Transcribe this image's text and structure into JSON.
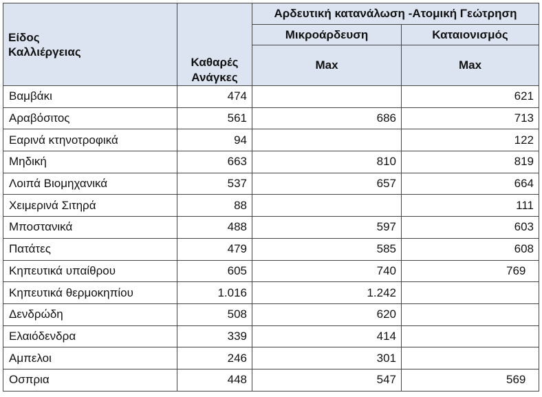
{
  "header": {
    "crop_type": "Είδος Καλλιέργειας",
    "crop_type_lines": [
      "Είδος",
      "Καλλιέργειας"
    ],
    "net_needs_lines": [
      "Καθαρές",
      "Ανάγκες"
    ],
    "group_title": "Αρδευτική κατανάλωση -Ατομική Γεώτρηση",
    "micro_irrigation": "Μικροάρδευση",
    "sprinkler": "Καταιονισμός",
    "max_micro": "Max",
    "max_sprinkler": "Max"
  },
  "rows": [
    {
      "crop": "Βαμβάκι",
      "net": "474",
      "micro": "",
      "sprinkler": "621"
    },
    {
      "crop": "Αραβόσιτος",
      "net": "561",
      "micro": "686",
      "sprinkler": "713"
    },
    {
      "crop": "Εαρινά κτηνοτροφικά",
      "net": "94",
      "micro": "",
      "sprinkler": "122"
    },
    {
      "crop": "Μηδική",
      "net": "663",
      "micro": "810",
      "sprinkler": "819"
    },
    {
      "crop": "Λοιπά Βιομηχανικά",
      "net": "537",
      "micro": "657",
      "sprinkler": "664"
    },
    {
      "crop": "Χειμερινά Σιτηρά",
      "net": "88",
      "micro": "",
      "sprinkler": "111"
    },
    {
      "crop": "Μποστανικά",
      "net": "488",
      "micro": "597",
      "sprinkler": "603"
    },
    {
      "crop": "Πατάτες",
      "net": "479",
      "micro": "585",
      "sprinkler": "608"
    },
    {
      "crop": "Κηπευτικά υπαίθρου",
      "net": "605",
      "micro": "740",
      "sprinkler": "769"
    },
    {
      "crop": "Κηπευτικά θερμοκηπίου",
      "net": "1.016",
      "micro": "1.242",
      "sprinkler": ""
    },
    {
      "crop": "Δενδρώδη",
      "net": "508",
      "micro": "620",
      "sprinkler": ""
    },
    {
      "crop": "Ελαιόδενδρα",
      "net": "339",
      "micro": "414",
      "sprinkler": ""
    },
    {
      "crop": "Αμπελοι",
      "net": "246",
      "micro": "301",
      "sprinkler": ""
    },
    {
      "crop": "Οσπρια",
      "net": "448",
      "micro": "547",
      "sprinkler": "569"
    }
  ]
}
